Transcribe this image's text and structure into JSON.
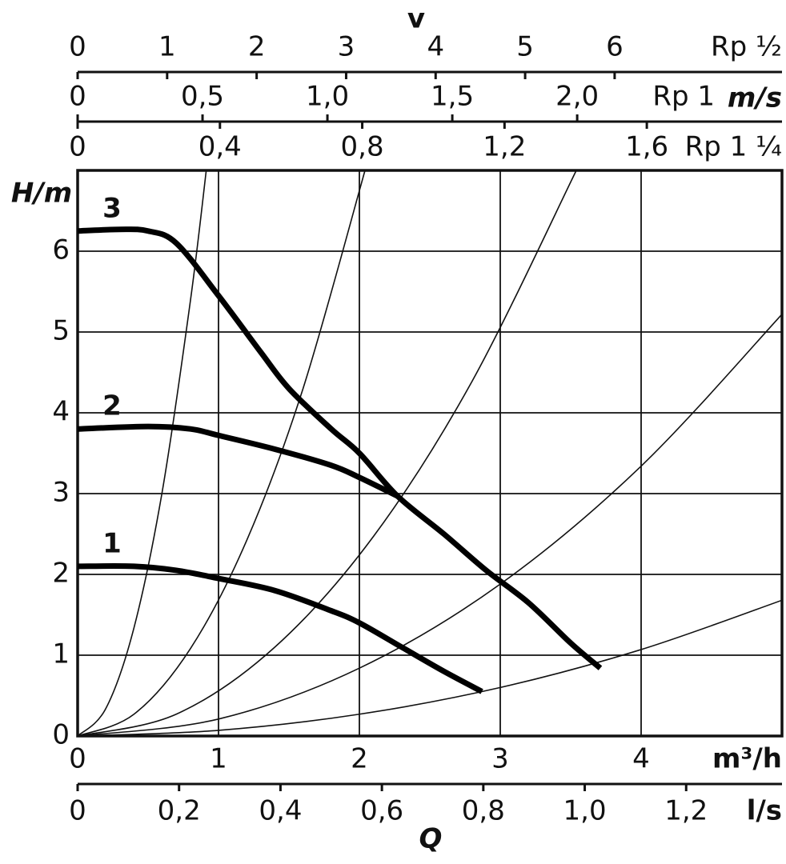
{
  "chart_data": {
    "type": "line",
    "x_label": "Q",
    "x_unit": "m³/h",
    "y_label": "H/m",
    "xlim": [
      0,
      5
    ],
    "xticks": [
      0,
      1,
      2,
      3,
      4
    ],
    "ylim": [
      0,
      7
    ],
    "yticks": [
      0,
      1,
      2,
      3,
      4,
      5,
      6
    ],
    "grid": true,
    "series": [
      {
        "name": "3",
        "color": "#000000",
        "x": [
          0,
          0.3,
          0.5,
          0.7,
          1.0,
          1.3,
          1.5,
          1.8,
          2.0,
          2.27,
          2.6,
          2.9,
          3.2,
          3.5,
          3.71
        ],
        "values": [
          6.25,
          6.27,
          6.25,
          6.1,
          5.45,
          4.75,
          4.3,
          3.8,
          3.5,
          2.97,
          2.5,
          2.05,
          1.65,
          1.15,
          0.84
        ]
      },
      {
        "name": "2",
        "color": "#000000",
        "x": [
          0,
          0.5,
          0.8,
          1.0,
          1.4,
          1.8,
          2.0,
          2.27
        ],
        "values": [
          3.8,
          3.83,
          3.8,
          3.72,
          3.55,
          3.35,
          3.2,
          2.97
        ]
      },
      {
        "name": "1",
        "color": "#000000",
        "x": [
          0,
          0.4,
          0.7,
          1.0,
          1.4,
          1.8,
          2.0,
          2.3,
          2.6,
          2.87
        ],
        "values": [
          2.1,
          2.1,
          2.05,
          1.95,
          1.8,
          1.55,
          1.4,
          1.1,
          0.8,
          0.55
        ]
      }
    ],
    "system_curves": [
      {
        "x": [
          0,
          0.2,
          0.4,
          0.6,
          0.8,
          0.913
        ],
        "values": [
          0,
          0.34,
          1.34,
          3.02,
          5.38,
          7.0
        ]
      },
      {
        "x": [
          0,
          0.4,
          0.8,
          1.2,
          1.6,
          2.04
        ],
        "values": [
          0,
          0.27,
          1.08,
          2.42,
          4.3,
          7.0
        ]
      },
      {
        "x": [
          0,
          0.7,
          1.4,
          2.1,
          2.8,
          3.54
        ],
        "values": [
          0,
          0.27,
          1.1,
          2.47,
          4.39,
          7.0
        ]
      },
      {
        "x": [
          0,
          1,
          2,
          3,
          4,
          5
        ],
        "values": [
          0,
          0.21,
          0.84,
          1.88,
          3.34,
          5.22
        ]
      },
      {
        "x": [
          0,
          1,
          2,
          3,
          4,
          5
        ],
        "values": [
          0,
          0.07,
          0.27,
          0.6,
          1.07,
          1.68
        ]
      }
    ],
    "flow_axis": {
      "unit": "l/s",
      "lim": [
        0,
        1.389
      ],
      "ticks": [
        0,
        {
          "value": 0.2,
          "label": "0,2"
        },
        {
          "value": 0.4,
          "label": "0,4"
        },
        {
          "value": 0.6,
          "label": "0,6"
        },
        {
          "value": 0.8,
          "label": "0,8"
        },
        {
          "value": 1.0,
          "label": "1,0"
        },
        {
          "value": 1.2,
          "label": "1,2"
        }
      ]
    },
    "velocity_axes": {
      "title": "v",
      "unit": "m/s",
      "axes": [
        {
          "label": "Rp ½",
          "lim": [
            0,
            7.87
          ],
          "ticks": [
            0,
            1,
            2,
            3,
            4,
            5,
            6
          ]
        },
        {
          "label": "Rp 1",
          "lim": [
            0,
            2.82
          ],
          "ticks": [
            0,
            {
              "value": 0.5,
              "label": "0,5"
            },
            {
              "value": 1.0,
              "label": "1,0"
            },
            {
              "value": 1.5,
              "label": "1,5"
            },
            {
              "value": 2.0,
              "label": "2,0"
            }
          ]
        },
        {
          "label": "Rp 1 ¼",
          "lim": [
            0,
            1.98
          ],
          "ticks": [
            0,
            {
              "value": 0.4,
              "label": "0,4"
            },
            {
              "value": 0.8,
              "label": "0,8"
            },
            {
              "value": 1.2,
              "label": "1,2"
            },
            {
              "value": 1.6,
              "label": "1,6"
            }
          ]
        }
      ]
    }
  }
}
